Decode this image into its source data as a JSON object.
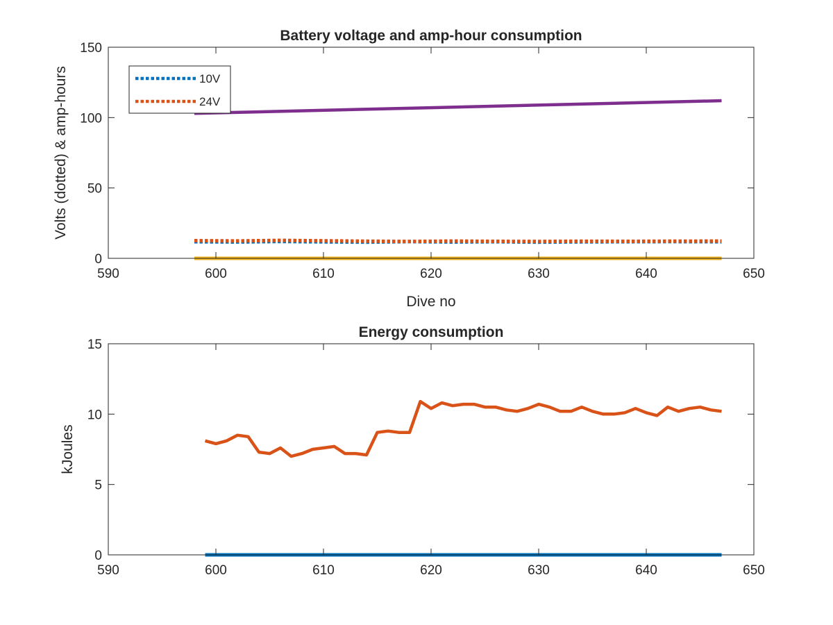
{
  "figure": {
    "background": "#ffffff"
  },
  "chart_data": [
    {
      "type": "line",
      "title": "Battery voltage and amp-hour consumption",
      "xlabel": "Dive no",
      "ylabel": "Volts (dotted) & amp-hours",
      "xlim": [
        590,
        650
      ],
      "ylim": [
        0,
        150
      ],
      "xticks": [
        590,
        600,
        610,
        620,
        630,
        640,
        650
      ],
      "yticks": [
        0,
        50,
        100,
        150
      ],
      "grid": false,
      "legend": {
        "placement": "top-left",
        "entries": [
          "10V",
          "24V"
        ]
      },
      "series": [
        {
          "name": "10V",
          "style": "dotted",
          "color": "#0072BD",
          "x": [
            598,
            602,
            606,
            610,
            614,
            618,
            622,
            626,
            630,
            634,
            638,
            642,
            647
          ],
          "values": [
            11.8,
            11.6,
            12.0,
            11.7,
            11.5,
            11.9,
            11.6,
            11.8,
            11.5,
            11.7,
            11.8,
            11.9,
            11.8
          ]
        },
        {
          "name": "24V",
          "style": "dotted",
          "color": "#D95319",
          "x": [
            598,
            602,
            606,
            610,
            614,
            618,
            622,
            626,
            630,
            634,
            638,
            642,
            647
          ],
          "values": [
            12.6,
            12.4,
            12.8,
            12.5,
            12.2,
            12.0,
            12.3,
            12.1,
            12.0,
            12.2,
            12.1,
            12.2,
            12.3
          ]
        },
        {
          "style": "solid",
          "color": "#7E2F8E",
          "x": [
            598,
            647
          ],
          "values": [
            103,
            112
          ]
        },
        {
          "style": "solid",
          "color": "#EDB120",
          "x": [
            598,
            647
          ],
          "values": [
            0,
            0
          ]
        }
      ]
    },
    {
      "type": "line",
      "title": "Energy consumption",
      "xlabel": "",
      "ylabel": "kJoules",
      "xlim": [
        590,
        650
      ],
      "ylim": [
        0,
        15
      ],
      "xticks": [
        590,
        600,
        610,
        620,
        630,
        640,
        650
      ],
      "yticks": [
        0,
        5,
        10,
        15
      ],
      "grid": false,
      "series": [
        {
          "style": "solid",
          "color": "#D95319",
          "x": [
            599,
            600,
            601,
            602,
            603,
            604,
            605,
            606,
            607,
            608,
            609,
            610,
            611,
            612,
            613,
            614,
            615,
            616,
            617,
            618,
            619,
            620,
            621,
            622,
            623,
            624,
            625,
            626,
            627,
            628,
            629,
            630,
            631,
            632,
            633,
            634,
            635,
            636,
            637,
            638,
            639,
            640,
            641,
            642,
            643,
            644,
            645,
            646,
            647
          ],
          "values": [
            8.1,
            7.9,
            8.1,
            8.5,
            8.4,
            7.3,
            7.2,
            7.6,
            7.0,
            7.2,
            7.5,
            7.6,
            7.7,
            7.2,
            7.2,
            7.1,
            8.7,
            8.8,
            8.7,
            8.7,
            10.9,
            10.4,
            10.8,
            10.6,
            10.7,
            10.7,
            10.5,
            10.5,
            10.3,
            10.2,
            10.4,
            10.7,
            10.5,
            10.2,
            10.2,
            10.5,
            10.2,
            10.0,
            10.0,
            10.1,
            10.4,
            10.1,
            9.9,
            10.5,
            10.2,
            10.4,
            10.5,
            10.3,
            10.2
          ]
        },
        {
          "style": "solid",
          "color": "#0072BD",
          "x": [
            599,
            647
          ],
          "values": [
            0,
            0
          ]
        }
      ]
    }
  ]
}
